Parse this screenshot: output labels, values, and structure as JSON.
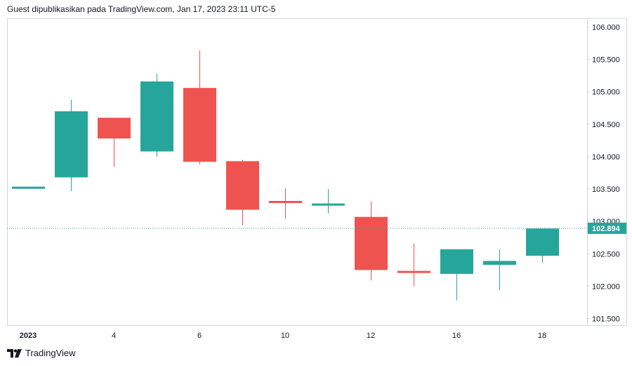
{
  "header": {
    "caption": "Guest dipublikasikan pada TradingView.com, Jan 17, 2023 23:11 UTC-5"
  },
  "footer": {
    "logo_text": "TradingView"
  },
  "colors": {
    "up": "#26a69a",
    "down": "#ef5350",
    "border": "#d1d4dc",
    "last_price_line": "#26a69a"
  },
  "chart_data": {
    "type": "candlestick",
    "ylim": [
      101.5,
      106.0
    ],
    "y_ticks": [
      "106.000",
      "105.500",
      "105.000",
      "104.500",
      "104.000",
      "103.500",
      "103.000",
      "102.500",
      "102.000",
      "101.500"
    ],
    "x_ticks": [
      {
        "label": "2023",
        "index": 0
      },
      {
        "label": "4",
        "index": 2
      },
      {
        "label": "6",
        "index": 4
      },
      {
        "label": "10",
        "index": 6
      },
      {
        "label": "12",
        "index": 8
      },
      {
        "label": "16",
        "index": 10
      },
      {
        "label": "18",
        "index": 12
      }
    ],
    "last_price": 102.894,
    "last_price_label": "102.894",
    "candles": [
      {
        "open": 103.52,
        "high": 103.52,
        "low": 103.52,
        "close": 103.52
      },
      {
        "open": 103.68,
        "high": 104.88,
        "low": 103.47,
        "close": 104.7
      },
      {
        "open": 104.6,
        "high": 104.6,
        "low": 103.84,
        "close": 104.28
      },
      {
        "open": 104.08,
        "high": 105.28,
        "low": 104.0,
        "close": 105.16
      },
      {
        "open": 105.06,
        "high": 105.64,
        "low": 103.88,
        "close": 103.92
      },
      {
        "open": 103.93,
        "high": 103.95,
        "low": 102.94,
        "close": 103.18
      },
      {
        "open": 103.3,
        "high": 103.51,
        "low": 103.04,
        "close": 103.28
      },
      {
        "open": 103.23,
        "high": 103.5,
        "low": 103.12,
        "close": 103.26
      },
      {
        "open": 103.07,
        "high": 103.31,
        "low": 102.09,
        "close": 102.25
      },
      {
        "open": 102.22,
        "high": 102.66,
        "low": 102.0,
        "close": 102.19
      },
      {
        "open": 102.19,
        "high": 102.57,
        "low": 101.78,
        "close": 102.57
      },
      {
        "open": 102.33,
        "high": 102.57,
        "low": 101.94,
        "close": 102.39
      },
      {
        "open": 102.47,
        "high": 102.89,
        "low": 102.36,
        "close": 102.89
      }
    ]
  }
}
